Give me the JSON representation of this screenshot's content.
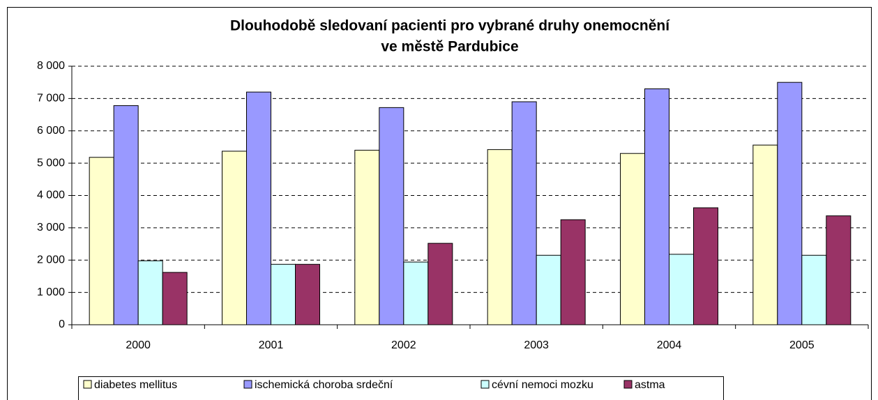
{
  "chart_data": {
    "type": "bar",
    "title": [
      "Dlouhodobě sledovaní pacienti pro vybrané druhy onemocnění",
      "ve městě Pardubice"
    ],
    "categories": [
      "2000",
      "2001",
      "2002",
      "2003",
      "2004",
      "2005"
    ],
    "series": [
      {
        "name": "diabetes mellitus",
        "color": "#ffffcc",
        "values": [
          5180,
          5370,
          5400,
          5420,
          5300,
          5560
        ]
      },
      {
        "name": "ischemická choroba srdeční",
        "color": "#9999ff",
        "values": [
          6780,
          7200,
          6720,
          6900,
          7300,
          7500
        ]
      },
      {
        "name": "cévní nemoci mozku",
        "color": "#ccffff",
        "values": [
          1980,
          1870,
          1940,
          2150,
          2180,
          2150
        ]
      },
      {
        "name": "astma",
        "color": "#993366",
        "values": [
          1620,
          1870,
          2520,
          3250,
          3620,
          3370
        ]
      }
    ],
    "ylim": [
      0,
      8000
    ],
    "yticks": [
      0,
      {
        "value": 1000,
        "label": "1 000"
      },
      {
        "value": 2000,
        "label": "2 000"
      },
      {
        "value": 3000,
        "label": "3 000"
      },
      {
        "value": 4000,
        "label": "4 000"
      },
      {
        "value": 5000,
        "label": "5 000"
      },
      {
        "value": 6000,
        "label": "6 000"
      },
      {
        "value": 7000,
        "label": "7 000"
      },
      {
        "value": 8000,
        "label": "8 000"
      }
    ],
    "grid": true,
    "legend": "bottom"
  }
}
